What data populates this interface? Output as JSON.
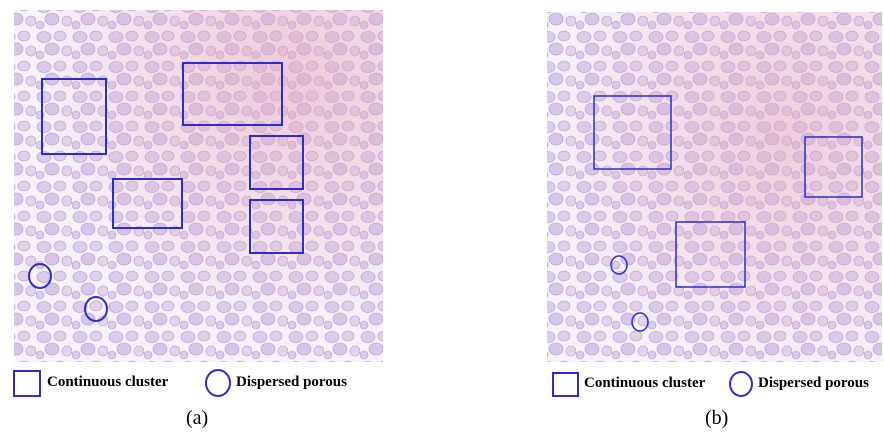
{
  "panels": [
    {
      "label": "(a)",
      "legend": [
        "Continuous cluster",
        "Dispersed porous"
      ]
    },
    {
      "label": "(b)",
      "legend": [
        "Continuous cluster",
        "Dispersed porous"
      ]
    }
  ]
}
